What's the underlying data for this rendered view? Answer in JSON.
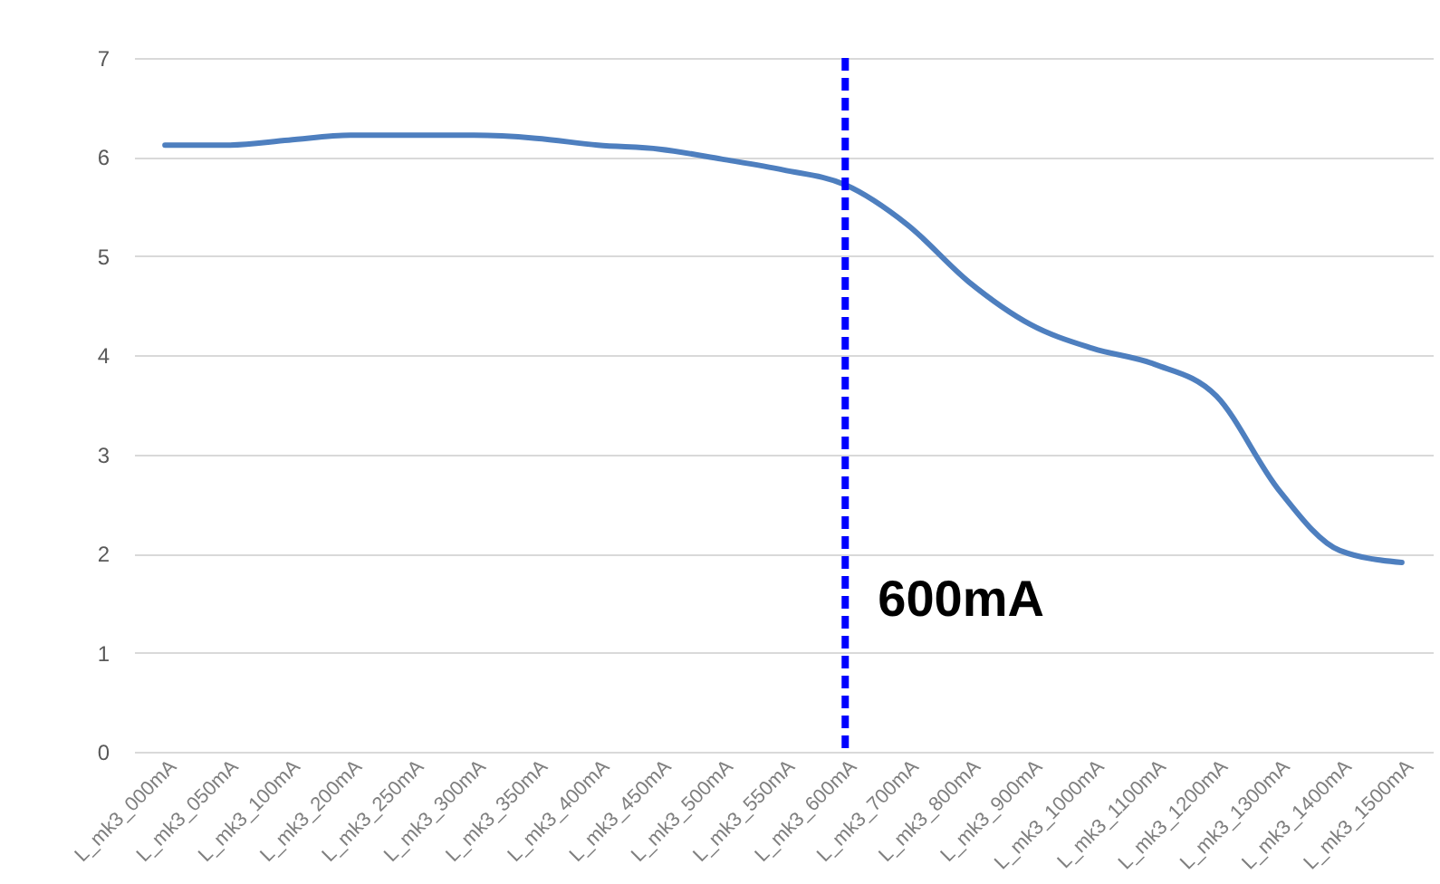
{
  "chart_data": {
    "type": "line",
    "categories": [
      "L_mk3_000mA",
      "L_mk3_050mA",
      "L_mk3_100mA",
      "L_mk3_200mA",
      "L_mk3_250mA",
      "L_mk3_300mA",
      "L_mk3_350mA",
      "L_mk3_400mA",
      "L_mk3_450mA",
      "L_mk3_500mA",
      "L_mk3_550mA",
      "L_mk3_600mA",
      "L_mk3_700mA",
      "L_mk3_800mA",
      "L_mk3_900mA",
      "L_mk3_1000mA",
      "L_mk3_1100mA",
      "L_mk3_1200mA",
      "L_mk3_1300mA",
      "L_mk3_1400mA",
      "L_mk3_1500mA"
    ],
    "series": [
      {
        "color": "#4e7fbf",
        "values": [
          6.12,
          6.12,
          6.17,
          6.22,
          6.22,
          6.22,
          6.19,
          6.12,
          6.08,
          5.98,
          5.87,
          5.72,
          5.32,
          4.74,
          4.31,
          4.07,
          3.91,
          3.59,
          2.65,
          2.03,
          1.91
        ]
      }
    ],
    "ylim": [
      0,
      7
    ],
    "yticks": [
      0,
      1,
      2,
      3,
      4,
      5,
      6,
      7
    ],
    "grid": "y",
    "marker": "none",
    "line_style": "solid",
    "ref_lines": [
      {
        "axis": "x",
        "value": "L_mk3_600mA",
        "label": "600mA",
        "color": "#0000ff",
        "line_style": "dashed"
      }
    ]
  }
}
